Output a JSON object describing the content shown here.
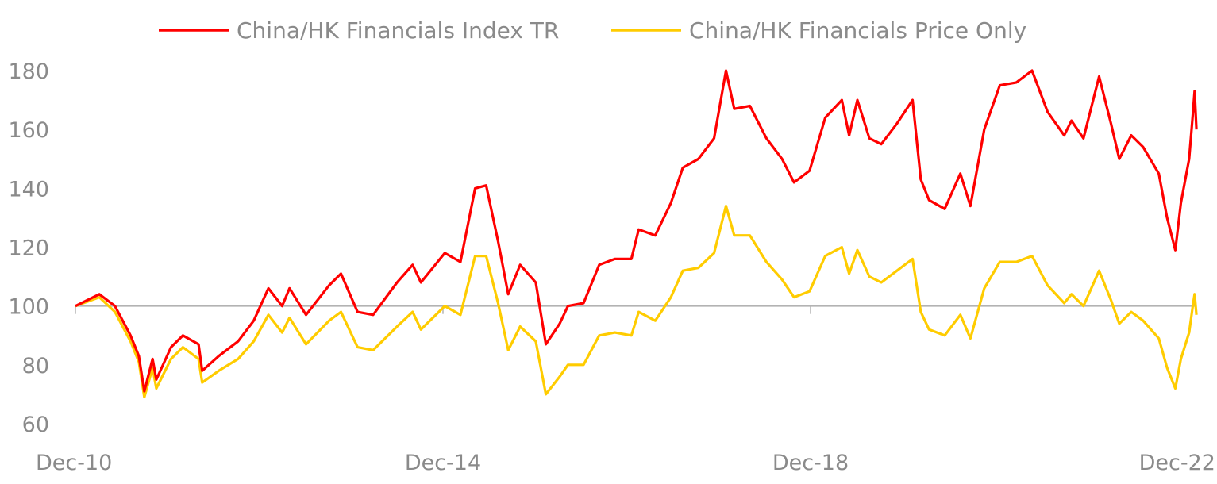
{
  "chart_data": {
    "type": "line",
    "title": "",
    "xlabel": "",
    "ylabel": "",
    "ylim": [
      60,
      180
    ],
    "yticks": [
      60,
      80,
      100,
      120,
      140,
      160,
      180
    ],
    "ytick_labels": [
      "60",
      "80",
      "100",
      "120",
      "140",
      "160",
      "180"
    ],
    "x_unit": "years since Dec-10",
    "xlim": [
      0,
      12.2
    ],
    "xticks": [
      0,
      4,
      8,
      12
    ],
    "xtick_labels": [
      "Dec-10",
      "Dec-14",
      "Dec-18",
      "Dec-22"
    ],
    "baseline": 100,
    "grid": false,
    "legend_position": "top",
    "x": [
      0,
      0.26,
      0.43,
      0.6,
      0.69,
      0.75,
      0.84,
      0.88,
      1.04,
      1.17,
      1.34,
      1.38,
      1.56,
      1.77,
      1.94,
      2.1,
      2.25,
      2.33,
      2.51,
      2.76,
      2.89,
      3.07,
      3.24,
      3.5,
      3.67,
      3.76,
      4.02,
      4.19,
      4.35,
      4.47,
      4.6,
      4.71,
      4.84,
      5.01,
      5.12,
      5.27,
      5.36,
      5.53,
      5.7,
      5.87,
      6.05,
      6.13,
      6.31,
      6.48,
      6.61,
      6.78,
      6.95,
      7.08,
      7.17,
      7.34,
      7.52,
      7.69,
      7.82,
      7.99,
      8.16,
      8.34,
      8.42,
      8.51,
      8.64,
      8.77,
      8.94,
      9.11,
      9.2,
      9.29,
      9.46,
      9.63,
      9.74,
      9.89,
      10.06,
      10.24,
      10.41,
      10.58,
      10.76,
      10.84,
      10.97,
      11.14,
      11.27,
      11.36,
      11.49,
      11.62,
      11.79,
      11.88,
      11.97,
      12.03,
      12.12,
      12.16,
      12.18,
      12.2
    ],
    "series": [
      {
        "name": "China/HK Financials Index TR",
        "color": "#ff0000",
        "values": [
          100,
          104,
          100,
          90,
          83,
          71,
          82,
          75,
          86,
          90,
          87,
          78,
          83,
          88,
          95,
          106,
          100,
          106,
          97,
          107,
          111,
          98,
          97,
          108,
          114,
          108,
          118,
          115,
          140,
          141,
          122,
          104,
          114,
          108,
          87,
          94,
          100,
          101,
          114,
          116,
          116,
          126,
          124,
          135,
          147,
          150,
          157,
          180,
          167,
          168,
          157,
          150,
          142,
          146,
          164,
          170,
          158,
          170,
          157,
          155,
          162,
          170,
          143,
          136,
          133,
          145,
          134,
          160,
          175,
          176,
          180,
          166,
          158,
          163,
          157,
          178,
          162,
          150,
          158,
          154,
          145,
          130,
          119,
          135,
          150,
          165,
          173,
          160
        ]
      },
      {
        "name": "China/HK Financials Price Only",
        "color": "#ffcc00",
        "values": [
          100,
          103,
          98,
          88,
          81,
          69,
          79,
          72,
          82,
          86,
          82,
          74,
          78,
          82,
          88,
          97,
          91,
          96,
          87,
          95,
          98,
          86,
          85,
          93,
          98,
          92,
          100,
          97,
          117,
          117,
          101,
          85,
          93,
          88,
          70,
          76,
          80,
          80,
          90,
          91,
          90,
          98,
          95,
          103,
          112,
          113,
          118,
          134,
          124,
          124,
          115,
          109,
          103,
          105,
          117,
          120,
          111,
          119,
          110,
          108,
          112,
          116,
          98,
          92,
          90,
          97,
          89,
          106,
          115,
          115,
          117,
          107,
          101,
          104,
          100,
          112,
          102,
          94,
          98,
          95,
          89,
          79,
          72,
          82,
          91,
          100,
          104,
          97
        ]
      }
    ]
  }
}
